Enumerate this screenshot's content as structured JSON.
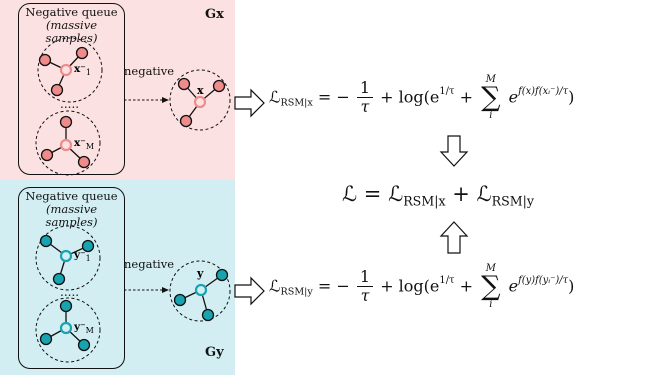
{
  "colors": {
    "pink": "#fbe1e1",
    "cyan": "#d2eef2",
    "pink_node": "#ef8b8b",
    "cyan_node": "#17a3b0",
    "stroke": "#111111"
  },
  "top": {
    "queue_title": "Negative queue",
    "queue_sub": "(massive samples)",
    "group_label": "Gx",
    "negative_label": "negative",
    "anchor_top_label": "x⁻",
    "anchor_top_sub": "1",
    "anchor_bottom_label": "x⁻",
    "anchor_bottom_sub": "M",
    "center_label": "x"
  },
  "bottom": {
    "queue_title": "Negative queue",
    "queue_sub": "(massive samples)",
    "group_label": "Gy",
    "negative_label": "negative",
    "anchor_top_label": "y⁻",
    "anchor_top_sub": "1",
    "anchor_bottom_label": "y⁻",
    "anchor_bottom_sub": "M",
    "center_label": "y"
  },
  "equations": {
    "lx": {
      "L": "ℒ",
      "sub": "RSM|x",
      "eq": "= −",
      "num": "1",
      "den": "τ",
      "log": "+ log(e",
      "exp1": "1/τ",
      "plus": " + ",
      "sum_top": "M",
      "sum_bot": "i",
      "e": "e",
      "exp2": "f(x)f(xᵢ⁻)/τ",
      "close": ")"
    },
    "total": {
      "L": "ℒ",
      "eq": " = ",
      "L1": "ℒ",
      "sub1": "RSM|x",
      "plus": " + ",
      "L2": "ℒ",
      "sub2": "RSM|y"
    },
    "ly": {
      "L": "ℒ",
      "sub": "RSM|y",
      "eq": "= −",
      "num": "1",
      "den": "τ",
      "log": "+ log(e",
      "exp1": "1/τ",
      "plus": " + ",
      "sum_top": "M",
      "sum_bot": "i",
      "e": "e",
      "exp2": "f(y)f(yᵢ⁻)/τ",
      "close": ")"
    }
  }
}
